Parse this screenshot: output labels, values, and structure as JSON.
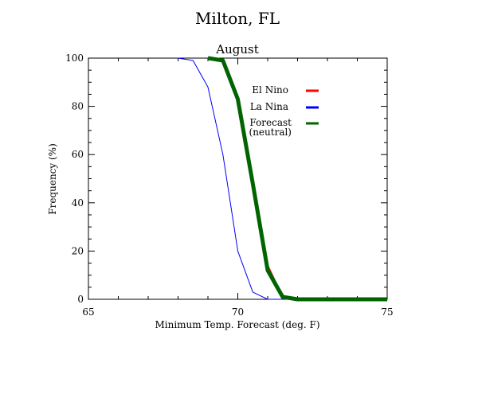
{
  "chart_data": {
    "type": "line",
    "title": "Milton, FL",
    "subtitle": "August",
    "xlabel": "Minimum Temp. Forecast (deg. F)",
    "ylabel": "Frequency (%)",
    "xlim": [
      65,
      75
    ],
    "ylim": [
      0,
      100
    ],
    "xticks": [
      65,
      70,
      75
    ],
    "yticks": [
      0,
      20,
      40,
      60,
      80,
      100
    ],
    "grid": false,
    "legend_placement": "top-right",
    "series": [
      {
        "name": "El Nino",
        "color": "#ff0000",
        "x": [
          69.0,
          69.5,
          70.0,
          70.5,
          71.0,
          71.5,
          72.0,
          72.5,
          73.0,
          73.5,
          74.0,
          74.5,
          75.0
        ],
        "y": [
          100,
          99,
          84,
          49,
          14,
          1,
          0,
          0,
          0,
          0,
          0,
          0,
          0
        ]
      },
      {
        "name": "La Nina",
        "color": "#0000ff",
        "x": [
          68.0,
          68.5,
          69.0,
          69.5,
          70.0,
          70.5,
          71.0,
          71.5,
          72.0,
          72.5,
          73.0,
          73.5,
          74.0,
          74.5,
          75.0
        ],
        "y": [
          100,
          99,
          88,
          60,
          20,
          3,
          0,
          0,
          0,
          0,
          0,
          0,
          0,
          0,
          0
        ]
      },
      {
        "name": "Forecast\n(neutral)",
        "color": "#006400",
        "x": [
          69.0,
          69.5,
          70.0,
          70.5,
          71.0,
          71.5,
          72.0,
          72.5,
          73.0,
          73.5,
          74.0,
          74.5,
          75.0
        ],
        "y": [
          100,
          99,
          83,
          48,
          12,
          1,
          0,
          0,
          0,
          0,
          0,
          0,
          0
        ]
      }
    ]
  }
}
